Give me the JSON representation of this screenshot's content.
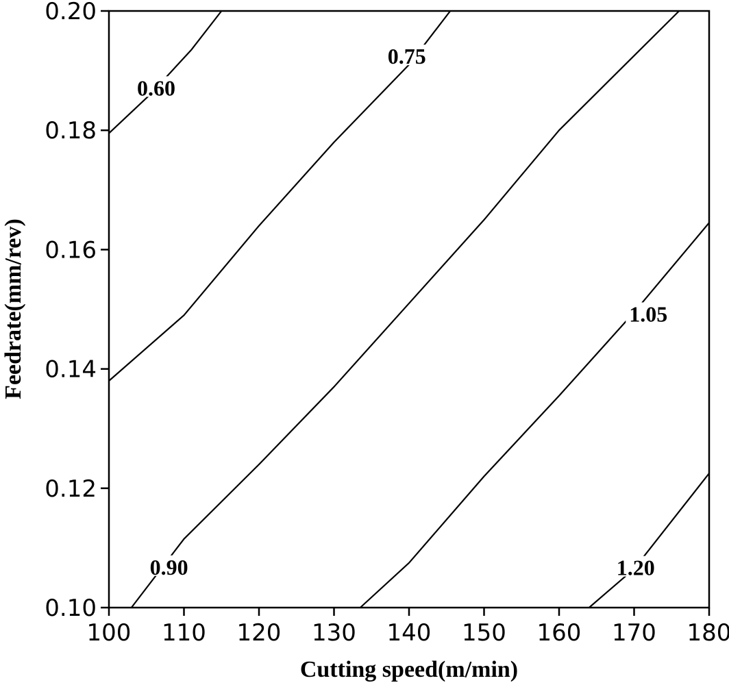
{
  "chart_data": {
    "type": "contour",
    "xlabel": "Cutting speed(m/min)",
    "ylabel": "Feedrate(mm/rev)",
    "xlim": [
      100,
      180
    ],
    "ylim": [
      0.1,
      0.2
    ],
    "xticks": [
      "100",
      "110",
      "120",
      "130",
      "140",
      "150",
      "160",
      "170",
      "180"
    ],
    "yticks": [
      "0.10",
      "0.12",
      "0.14",
      "0.16",
      "0.18",
      "0.20"
    ],
    "contours": [
      {
        "label": "0.60",
        "points": [
          [
            100,
            0.1795
          ],
          [
            105.5,
            0.186
          ],
          [
            111,
            0.1935
          ],
          [
            115,
            0.2
          ]
        ]
      },
      {
        "label": "0.75",
        "points": [
          [
            100,
            0.138
          ],
          [
            110,
            0.149
          ],
          [
            120,
            0.164
          ],
          [
            130,
            0.178
          ],
          [
            140,
            0.191
          ],
          [
            145.5,
            0.2
          ]
        ]
      },
      {
        "label": "0.90",
        "points": [
          [
            103,
            0.1
          ],
          [
            110,
            0.1115
          ],
          [
            120,
            0.124
          ],
          [
            130,
            0.137
          ],
          [
            140,
            0.151
          ],
          [
            150,
            0.165
          ],
          [
            160,
            0.18
          ],
          [
            170,
            0.1925
          ],
          [
            176,
            0.2
          ]
        ]
      },
      {
        "label": "1.05",
        "points": [
          [
            133.5,
            0.1
          ],
          [
            140,
            0.1075
          ],
          [
            150,
            0.122
          ],
          [
            160,
            0.1355
          ],
          [
            170,
            0.1495
          ],
          [
            180,
            0.1645
          ]
        ]
      },
      {
        "label": "1.20",
        "points": [
          [
            164,
            0.1
          ],
          [
            170,
            0.1065
          ],
          [
            180,
            0.1225
          ]
        ]
      }
    ],
    "contour_labels": [
      {
        "text": "0.60",
        "x": 106.3,
        "y": 0.1871
      },
      {
        "text": "0.75",
        "x": 139.7,
        "y": 0.1924
      },
      {
        "text": "0.90",
        "x": 108.0,
        "y": 0.1068
      },
      {
        "text": "1.05",
        "x": 171.9,
        "y": 0.1492
      },
      {
        "text": "1.20",
        "x": 170.2,
        "y": 0.1067
      }
    ],
    "grid": false,
    "legend": "none"
  }
}
